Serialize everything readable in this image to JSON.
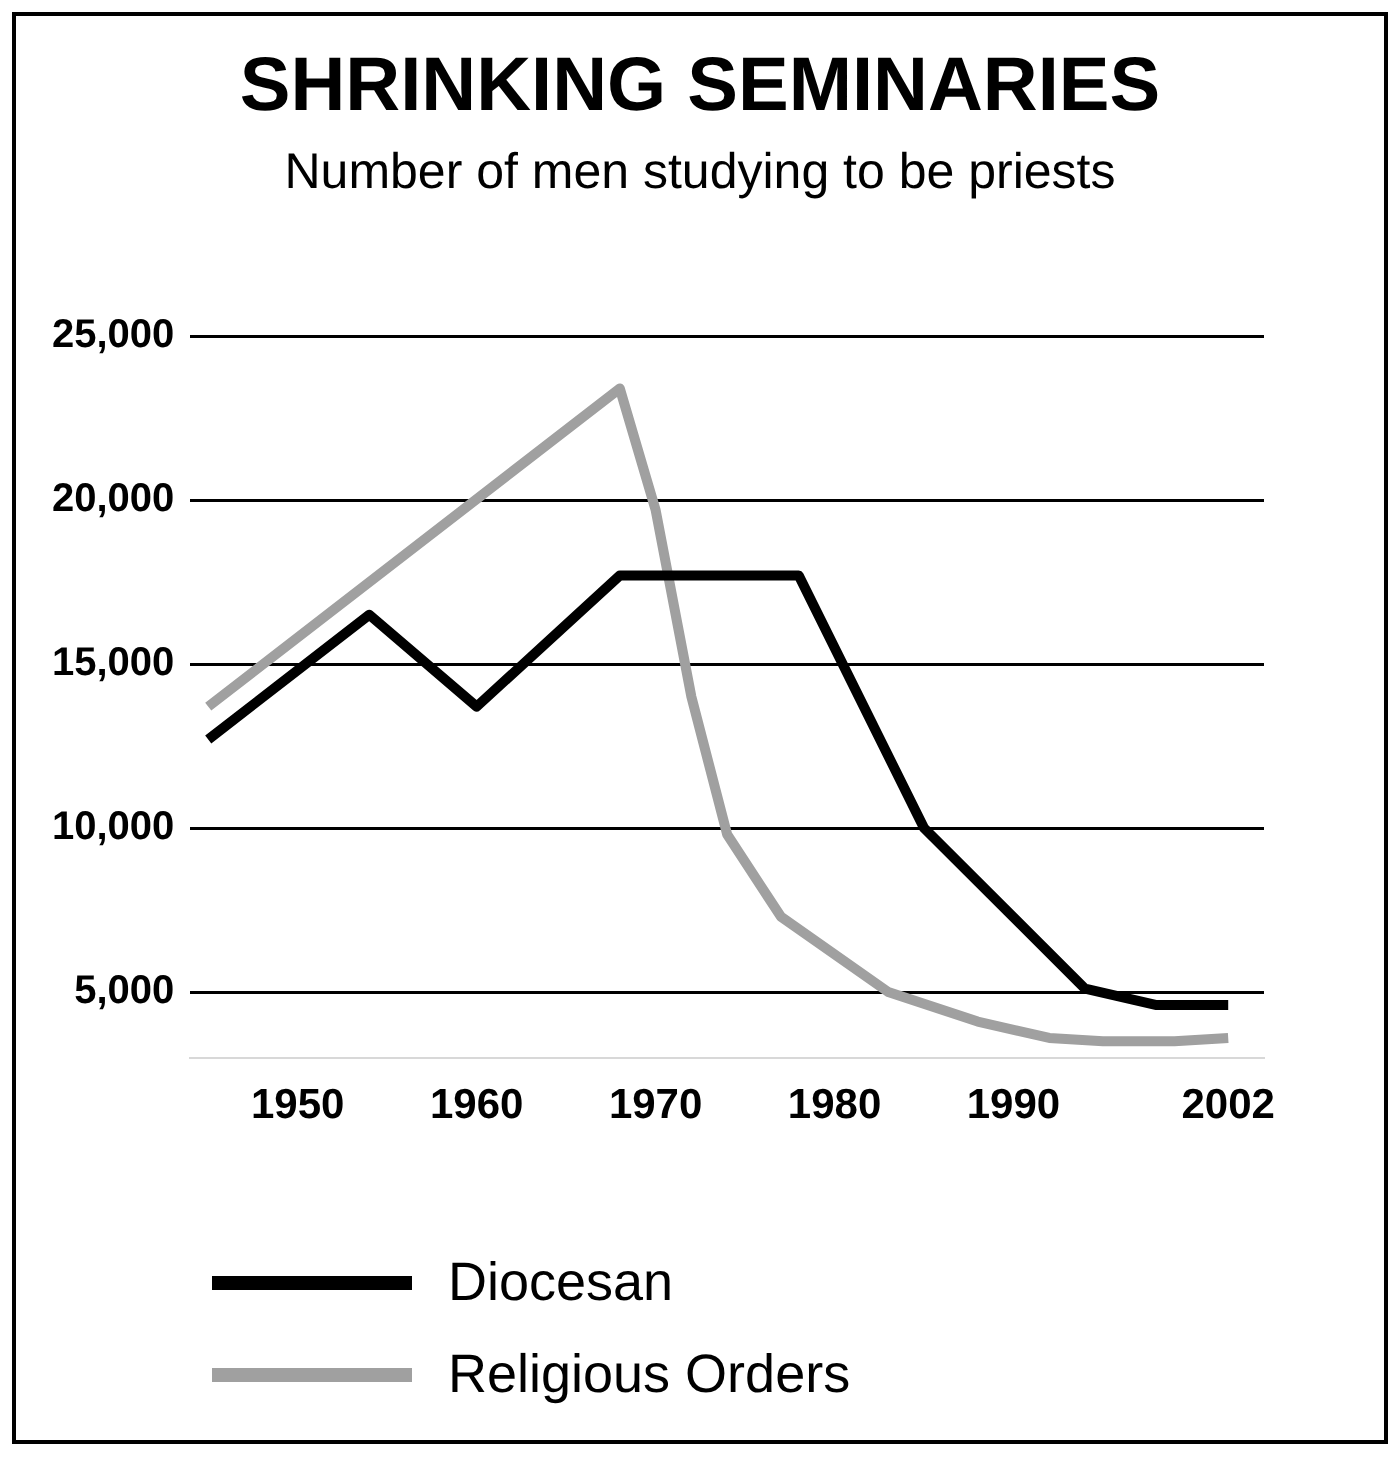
{
  "chart_data": {
    "type": "line",
    "title": "SHRINKING SEMINARIES",
    "subtitle": "Number of men studying to be priests",
    "x": [
      1945,
      1954,
      1960,
      1968,
      1978,
      1985,
      1994,
      1998,
      2002
    ],
    "series": [
      {
        "name": "Diocesan",
        "color": "#000000",
        "values": [
          12700,
          16500,
          13700,
          17700,
          17700,
          10000,
          5100,
          4600,
          4600
        ]
      },
      {
        "name": "Religious Orders",
        "color": "#a0a0a0",
        "x": [
          1945,
          1968,
          1970,
          1972,
          1974,
          1977,
          1983,
          1988,
          1992,
          1995,
          1999,
          2002
        ],
        "values": [
          13700,
          23400,
          19700,
          14000,
          9800,
          7300,
          5000,
          4100,
          3600,
          3500,
          3500,
          3600
        ]
      }
    ],
    "xlim": [
      1944,
      2004
    ],
    "xticks": [
      1950,
      1960,
      1970,
      1980,
      1990,
      2002
    ],
    "ylim": [
      3000,
      25000
    ],
    "yticks": [
      {
        "value": 5000,
        "label": "5,000"
      },
      {
        "value": 10000,
        "label": "10,000"
      },
      {
        "value": 15000,
        "label": "15,000"
      },
      {
        "value": 20000,
        "label": "20,000"
      },
      {
        "value": 25000,
        "label": "25,000"
      }
    ],
    "grid": "y",
    "legend": "bottom left",
    "marker": "none",
    "line_style": "solid"
  }
}
